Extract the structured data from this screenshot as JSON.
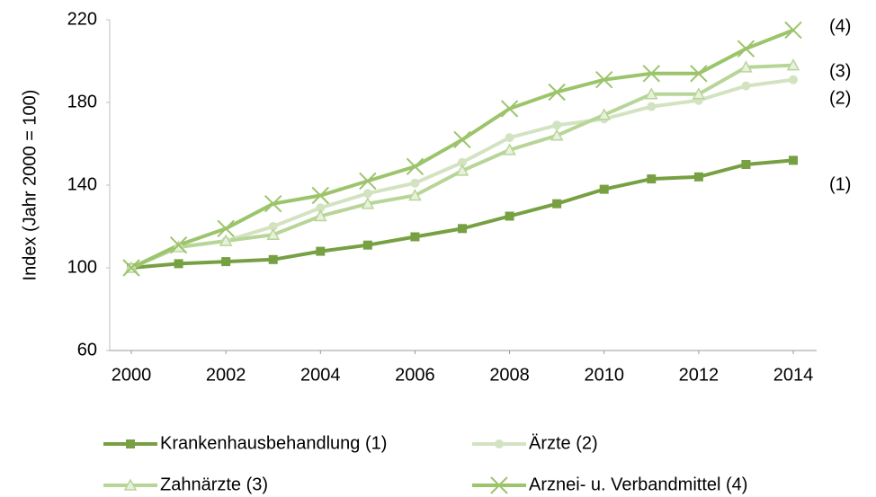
{
  "chart_data": {
    "type": "line",
    "y_label": "Index (Jahr 2000 = 100)",
    "x": [
      2000,
      2001,
      2002,
      2003,
      2004,
      2005,
      2006,
      2007,
      2008,
      2009,
      2010,
      2011,
      2012,
      2013,
      2014
    ],
    "xlim": [
      2000,
      2014
    ],
    "xticks": [
      2000,
      2002,
      2004,
      2006,
      2008,
      2010,
      2012,
      2014
    ],
    "ylim": [
      60,
      220
    ],
    "yticks": [
      60,
      100,
      140,
      180,
      220
    ],
    "grid": false,
    "series": [
      {
        "name": "Krankenhausbehandlung (1)",
        "color": "#77a043",
        "marker": "square",
        "values": [
          100,
          102,
          103,
          104,
          108,
          111,
          115,
          119,
          125,
          131,
          138,
          143,
          144,
          150,
          152
        ]
      },
      {
        "name": "Ärzte (2)",
        "color": "#d3e3c1",
        "marker": "circle",
        "values": [
          100,
          110,
          113,
          120,
          129,
          136,
          141,
          151,
          163,
          169,
          172,
          178,
          181,
          188,
          191
        ]
      },
      {
        "name": "Zahnärzte (3)",
        "color": "#b8d598",
        "marker": "triangle",
        "values": [
          100,
          110,
          113,
          116,
          125,
          131,
          135,
          147,
          157,
          164,
          174,
          184,
          184,
          197,
          198
        ]
      },
      {
        "name": "Arznei- u. Verbandmittel (4)",
        "color": "#9cc46b",
        "marker": "x",
        "values": [
          100,
          111,
          119,
          131,
          135,
          142,
          149,
          162,
          177,
          185,
          191,
          194,
          194,
          206,
          215
        ]
      }
    ],
    "annotations": [
      "(4)",
      "(3)",
      "(2)",
      "(1)"
    ]
  }
}
